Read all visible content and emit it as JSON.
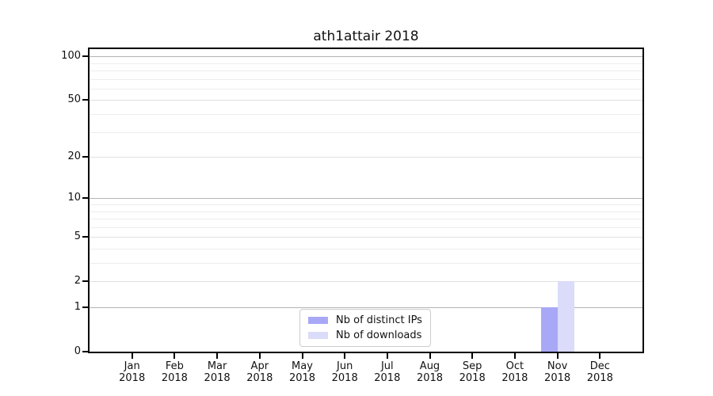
{
  "chart_data": {
    "type": "bar",
    "title": "ath1attair 2018",
    "categories": [
      "Jan 2018",
      "Feb 2018",
      "Mar 2018",
      "Apr 2018",
      "May 2018",
      "Jun 2018",
      "Jul 2018",
      "Aug 2018",
      "Sep 2018",
      "Oct 2018",
      "Nov 2018",
      "Dec 2018"
    ],
    "series": [
      {
        "name": "Nb of distinct IPs",
        "color": "#a8a8f7",
        "values": [
          0,
          0,
          0,
          0,
          0,
          0,
          0,
          0,
          0,
          0,
          1,
          0
        ]
      },
      {
        "name": "Nb of downloads",
        "color": "#dbdbfa",
        "values": [
          0,
          0,
          0,
          0,
          0,
          0,
          0,
          0,
          0,
          0,
          2,
          0
        ]
      }
    ],
    "xlabel": "",
    "ylabel": "",
    "yscale": "log1p",
    "ylim": [
      0,
      112
    ],
    "y_ticks": [
      0,
      1,
      2,
      5,
      10,
      20,
      50,
      100
    ],
    "y_minor_ticks": [
      3,
      4,
      6,
      7,
      8,
      9,
      30,
      40,
      60,
      70,
      80,
      90
    ],
    "y_decade_lines": [
      1,
      10,
      100
    ],
    "grid": "on",
    "legend_position": "lower center",
    "grid_colors": {
      "decade": "#b4b4b4",
      "major": "#e0e0e0",
      "minor": "#ededed"
    },
    "frame_color": "#000000"
  }
}
